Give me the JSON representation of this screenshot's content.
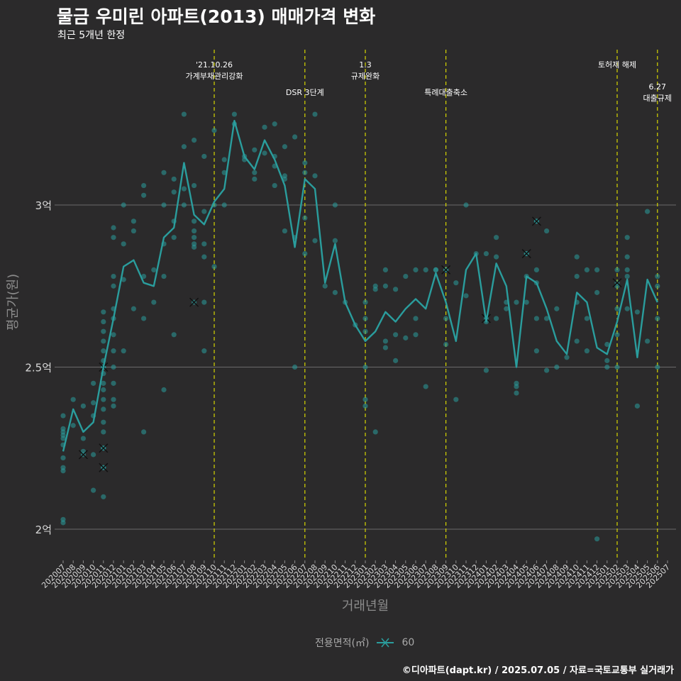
{
  "header": {
    "title": "물금 우미린 아파트(2013) 매매가격 변화",
    "subtitle": "최근 5개년 한정"
  },
  "caption": "©디아파트(dapt.kr) / 2025.07.05 / 자료=국토교통부 실거래가",
  "legend": {
    "title": "전용면적(㎡)",
    "label": "60"
  },
  "colors": {
    "background": "#2b2a2b",
    "series": "#2a9d9d",
    "event_line": "#d6d600",
    "grid": "#6b6b6b"
  },
  "chart_data": {
    "type": "line",
    "xlabel": "거래년월",
    "ylabel": "평균가(원)",
    "ylim": [
      1.9,
      3.5
    ],
    "y_ticks": [
      {
        "value": 2.0,
        "label": "2억"
      },
      {
        "value": 2.5,
        "label": "2.5억"
      },
      {
        "value": 3.0,
        "label": "3억"
      }
    ],
    "grid": "horizontal major",
    "legend_position": "bottom",
    "categories": [
      "202007",
      "202008",
      "202009",
      "202010",
      "202011",
      "202012",
      "202101",
      "202102",
      "202103",
      "202104",
      "202105",
      "202106",
      "202107",
      "202108",
      "202109",
      "202110",
      "202111",
      "202112",
      "202201",
      "202202",
      "202203",
      "202204",
      "202205",
      "202206",
      "202207",
      "202208",
      "202209",
      "202210",
      "202211",
      "202212",
      "202301",
      "202302",
      "202303",
      "202304",
      "202305",
      "202306",
      "202307",
      "202308",
      "202309",
      "202310",
      "202311",
      "202312",
      "202401",
      "202402",
      "202403",
      "202404",
      "202405",
      "202406",
      "202407",
      "202408",
      "202409",
      "202410",
      "202411",
      "202412",
      "202501",
      "202502",
      "202503",
      "202504",
      "202505",
      "202506",
      "202507"
    ],
    "series": [
      {
        "name": "60",
        "values": [
          2.24,
          2.37,
          2.3,
          2.33,
          2.5,
          2.65,
          2.81,
          2.83,
          2.76,
          2.75,
          2.9,
          2.93,
          3.13,
          2.97,
          2.94,
          3.01,
          3.05,
          3.26,
          3.15,
          3.11,
          3.2,
          3.14,
          3.06,
          2.87,
          3.08,
          3.05,
          2.76,
          2.88,
          2.7,
          2.63,
          2.58,
          2.61,
          2.67,
          2.64,
          2.68,
          2.71,
          2.68,
          2.79,
          2.7,
          2.58,
          2.8,
          2.85,
          2.64,
          2.82,
          2.75,
          2.5,
          2.78,
          2.76,
          2.68,
          2.58,
          2.54,
          2.73,
          2.7,
          2.56,
          2.54,
          2.64,
          2.77,
          2.53,
          2.77,
          2.7,
          null
        ]
      }
    ],
    "scatter_points": [
      [
        0,
        2.35
      ],
      [
        0,
        2.31
      ],
      [
        0,
        2.3
      ],
      [
        0,
        2.29
      ],
      [
        0,
        2.28
      ],
      [
        0,
        2.26
      ],
      [
        0,
        2.22
      ],
      [
        0,
        2.19
      ],
      [
        0,
        2.18
      ],
      [
        0,
        2.03
      ],
      [
        0,
        2.02
      ],
      [
        1,
        2.4
      ],
      [
        1,
        2.32
      ],
      [
        2,
        2.38
      ],
      [
        2,
        2.28
      ],
      [
        2,
        2.24
      ],
      [
        3,
        2.45
      ],
      [
        3,
        2.39
      ],
      [
        3,
        2.35
      ],
      [
        3,
        2.12
      ],
      [
        3,
        2.23
      ],
      [
        4,
        2.67
      ],
      [
        4,
        2.64
      ],
      [
        4,
        2.61
      ],
      [
        4,
        2.58
      ],
      [
        4,
        2.55
      ],
      [
        4,
        2.52
      ],
      [
        4,
        2.5
      ],
      [
        4,
        2.48
      ],
      [
        4,
        2.45
      ],
      [
        4,
        2.43
      ],
      [
        4,
        2.4
      ],
      [
        4,
        2.37
      ],
      [
        4,
        2.33
      ],
      [
        4,
        2.3
      ],
      [
        4,
        2.25
      ],
      [
        4,
        2.19
      ],
      [
        4,
        2.1
      ],
      [
        5,
        2.93
      ],
      [
        5,
        2.9
      ],
      [
        5,
        2.78
      ],
      [
        5,
        2.75
      ],
      [
        5,
        2.68
      ],
      [
        5,
        2.65
      ],
      [
        5,
        2.6
      ],
      [
        5,
        2.55
      ],
      [
        5,
        2.5
      ],
      [
        5,
        2.45
      ],
      [
        5,
        2.4
      ],
      [
        5,
        2.38
      ],
      [
        6,
        3.0
      ],
      [
        6,
        2.88
      ],
      [
        6,
        2.77
      ],
      [
        6,
        2.55
      ],
      [
        7,
        2.95
      ],
      [
        7,
        2.92
      ],
      [
        7,
        2.68
      ],
      [
        8,
        3.06
      ],
      [
        8,
        3.03
      ],
      [
        8,
        2.78
      ],
      [
        8,
        2.65
      ],
      [
        8,
        2.3
      ],
      [
        9,
        2.8
      ],
      [
        9,
        2.7
      ],
      [
        10,
        3.1
      ],
      [
        10,
        3.0
      ],
      [
        10,
        2.88
      ],
      [
        10,
        2.78
      ],
      [
        10,
        2.43
      ],
      [
        11,
        3.08
      ],
      [
        11,
        3.04
      ],
      [
        11,
        2.95
      ],
      [
        11,
        2.9
      ],
      [
        11,
        2.6
      ],
      [
        12,
        3.28
      ],
      [
        12,
        3.18
      ],
      [
        12,
        3.05
      ],
      [
        12,
        3.0
      ],
      [
        13,
        3.2
      ],
      [
        13,
        3.06
      ],
      [
        13,
        2.95
      ],
      [
        13,
        2.92
      ],
      [
        13,
        2.9
      ],
      [
        13,
        2.88
      ],
      [
        13,
        2.87
      ],
      [
        14,
        3.15
      ],
      [
        14,
        2.98
      ],
      [
        14,
        2.88
      ],
      [
        14,
        2.84
      ],
      [
        14,
        2.7
      ],
      [
        14,
        2.55
      ],
      [
        15,
        3.23
      ],
      [
        15,
        3.0
      ],
      [
        15,
        2.81
      ],
      [
        16,
        3.14
      ],
      [
        16,
        3.1
      ],
      [
        16,
        3.0
      ],
      [
        17,
        3.28
      ],
      [
        17,
        3.25
      ],
      [
        18,
        3.15
      ],
      [
        18,
        3.14
      ],
      [
        19,
        3.17
      ],
      [
        19,
        3.1
      ],
      [
        19,
        3.08
      ],
      [
        20,
        3.24
      ],
      [
        20,
        3.16
      ],
      [
        21,
        3.25
      ],
      [
        21,
        3.15
      ],
      [
        21,
        3.12
      ],
      [
        21,
        3.06
      ],
      [
        22,
        3.18
      ],
      [
        22,
        3.09
      ],
      [
        22,
        3.08
      ],
      [
        22,
        2.92
      ],
      [
        23,
        3.21
      ],
      [
        23,
        2.9
      ],
      [
        23,
        2.5
      ],
      [
        24,
        3.13
      ],
      [
        24,
        3.1
      ],
      [
        24,
        2.96
      ],
      [
        24,
        2.85
      ],
      [
        25,
        3.28
      ],
      [
        25,
        3.09
      ],
      [
        25,
        2.89
      ],
      [
        26,
        2.75
      ],
      [
        27,
        3.0
      ],
      [
        27,
        2.89
      ],
      [
        27,
        2.73
      ],
      [
        28,
        2.7
      ],
      [
        29,
        2.63
      ],
      [
        30,
        2.7
      ],
      [
        30,
        2.65
      ],
      [
        30,
        2.61
      ],
      [
        30,
        2.5
      ],
      [
        30,
        2.4
      ],
      [
        30,
        2.38
      ],
      [
        31,
        2.75
      ],
      [
        31,
        2.74
      ],
      [
        31,
        2.3
      ],
      [
        32,
        2.8
      ],
      [
        32,
        2.75
      ],
      [
        32,
        2.58
      ],
      [
        32,
        2.56
      ],
      [
        33,
        2.74
      ],
      [
        33,
        2.6
      ],
      [
        33,
        2.52
      ],
      [
        34,
        2.78
      ],
      [
        34,
        2.59
      ],
      [
        35,
        2.8
      ],
      [
        35,
        2.65
      ],
      [
        35,
        2.6
      ],
      [
        36,
        2.8
      ],
      [
        36,
        2.44
      ],
      [
        37,
        2.8
      ],
      [
        37,
        2.8
      ],
      [
        38,
        2.8
      ],
      [
        38,
        2.57
      ],
      [
        38,
        2.65
      ],
      [
        39,
        2.76
      ],
      [
        39,
        2.4
      ],
      [
        40,
        3.0
      ],
      [
        40,
        2.72
      ],
      [
        41,
        2.85
      ],
      [
        42,
        2.85
      ],
      [
        42,
        2.64
      ],
      [
        42,
        2.49
      ],
      [
        43,
        2.9
      ],
      [
        43,
        2.84
      ],
      [
        43,
        2.65
      ],
      [
        44,
        2.7
      ],
      [
        44,
        2.68
      ],
      [
        45,
        2.7
      ],
      [
        45,
        2.45
      ],
      [
        45,
        2.44
      ],
      [
        45,
        2.42
      ],
      [
        46,
        2.85
      ],
      [
        46,
        2.78
      ],
      [
        46,
        2.7
      ],
      [
        47,
        2.95
      ],
      [
        47,
        2.8
      ],
      [
        47,
        2.76
      ],
      [
        47,
        2.65
      ],
      [
        47,
        2.55
      ],
      [
        48,
        2.92
      ],
      [
        48,
        2.65
      ],
      [
        48,
        2.49
      ],
      [
        49,
        2.68
      ],
      [
        49,
        2.5
      ],
      [
        50,
        2.53
      ],
      [
        51,
        2.84
      ],
      [
        51,
        2.78
      ],
      [
        51,
        2.7
      ],
      [
        51,
        2.58
      ],
      [
        52,
        2.8
      ],
      [
        52,
        2.65
      ],
      [
        52,
        2.55
      ],
      [
        53,
        2.8
      ],
      [
        53,
        2.73
      ],
      [
        53,
        1.97
      ],
      [
        54,
        2.57
      ],
      [
        54,
        2.52
      ],
      [
        54,
        2.5
      ],
      [
        55,
        2.8
      ],
      [
        55,
        2.75
      ],
      [
        55,
        2.68
      ],
      [
        55,
        2.6
      ],
      [
        55,
        2.5
      ],
      [
        56,
        2.9
      ],
      [
        56,
        2.84
      ],
      [
        56,
        2.8
      ],
      [
        56,
        2.78
      ],
      [
        56,
        2.68
      ],
      [
        57,
        2.38
      ],
      [
        57,
        2.67
      ],
      [
        58,
        2.98
      ],
      [
        58,
        2.58
      ],
      [
        59,
        2.78
      ],
      [
        59,
        2.75
      ],
      [
        59,
        2.65
      ],
      [
        59,
        2.5
      ]
    ],
    "crossed_points": [
      [
        2,
        2.23
      ],
      [
        4,
        2.25
      ],
      [
        4,
        2.19
      ],
      [
        4,
        2.5
      ],
      [
        13,
        2.7
      ],
      [
        38,
        2.8
      ],
      [
        42,
        2.65
      ],
      [
        46,
        2.85
      ],
      [
        47,
        2.95
      ],
      [
        55,
        2.76
      ]
    ],
    "events": [
      {
        "category": "202110",
        "lines": [
          "'21.10.26",
          "가계부채관리강화"
        ],
        "row": 0
      },
      {
        "category": "202207",
        "lines": [
          "DSR 3단계"
        ],
        "row": 1
      },
      {
        "category": "202301",
        "lines": [
          "1.3",
          "규제완화"
        ],
        "row": 0
      },
      {
        "category": "202309",
        "lines": [
          "특례대출축소"
        ],
        "row": 1
      },
      {
        "category": "202502",
        "lines": [
          "토허제 해제"
        ],
        "row": 0
      },
      {
        "category": "202506",
        "lines": [
          "6.27",
          "대출규제"
        ],
        "row": 1
      }
    ]
  }
}
